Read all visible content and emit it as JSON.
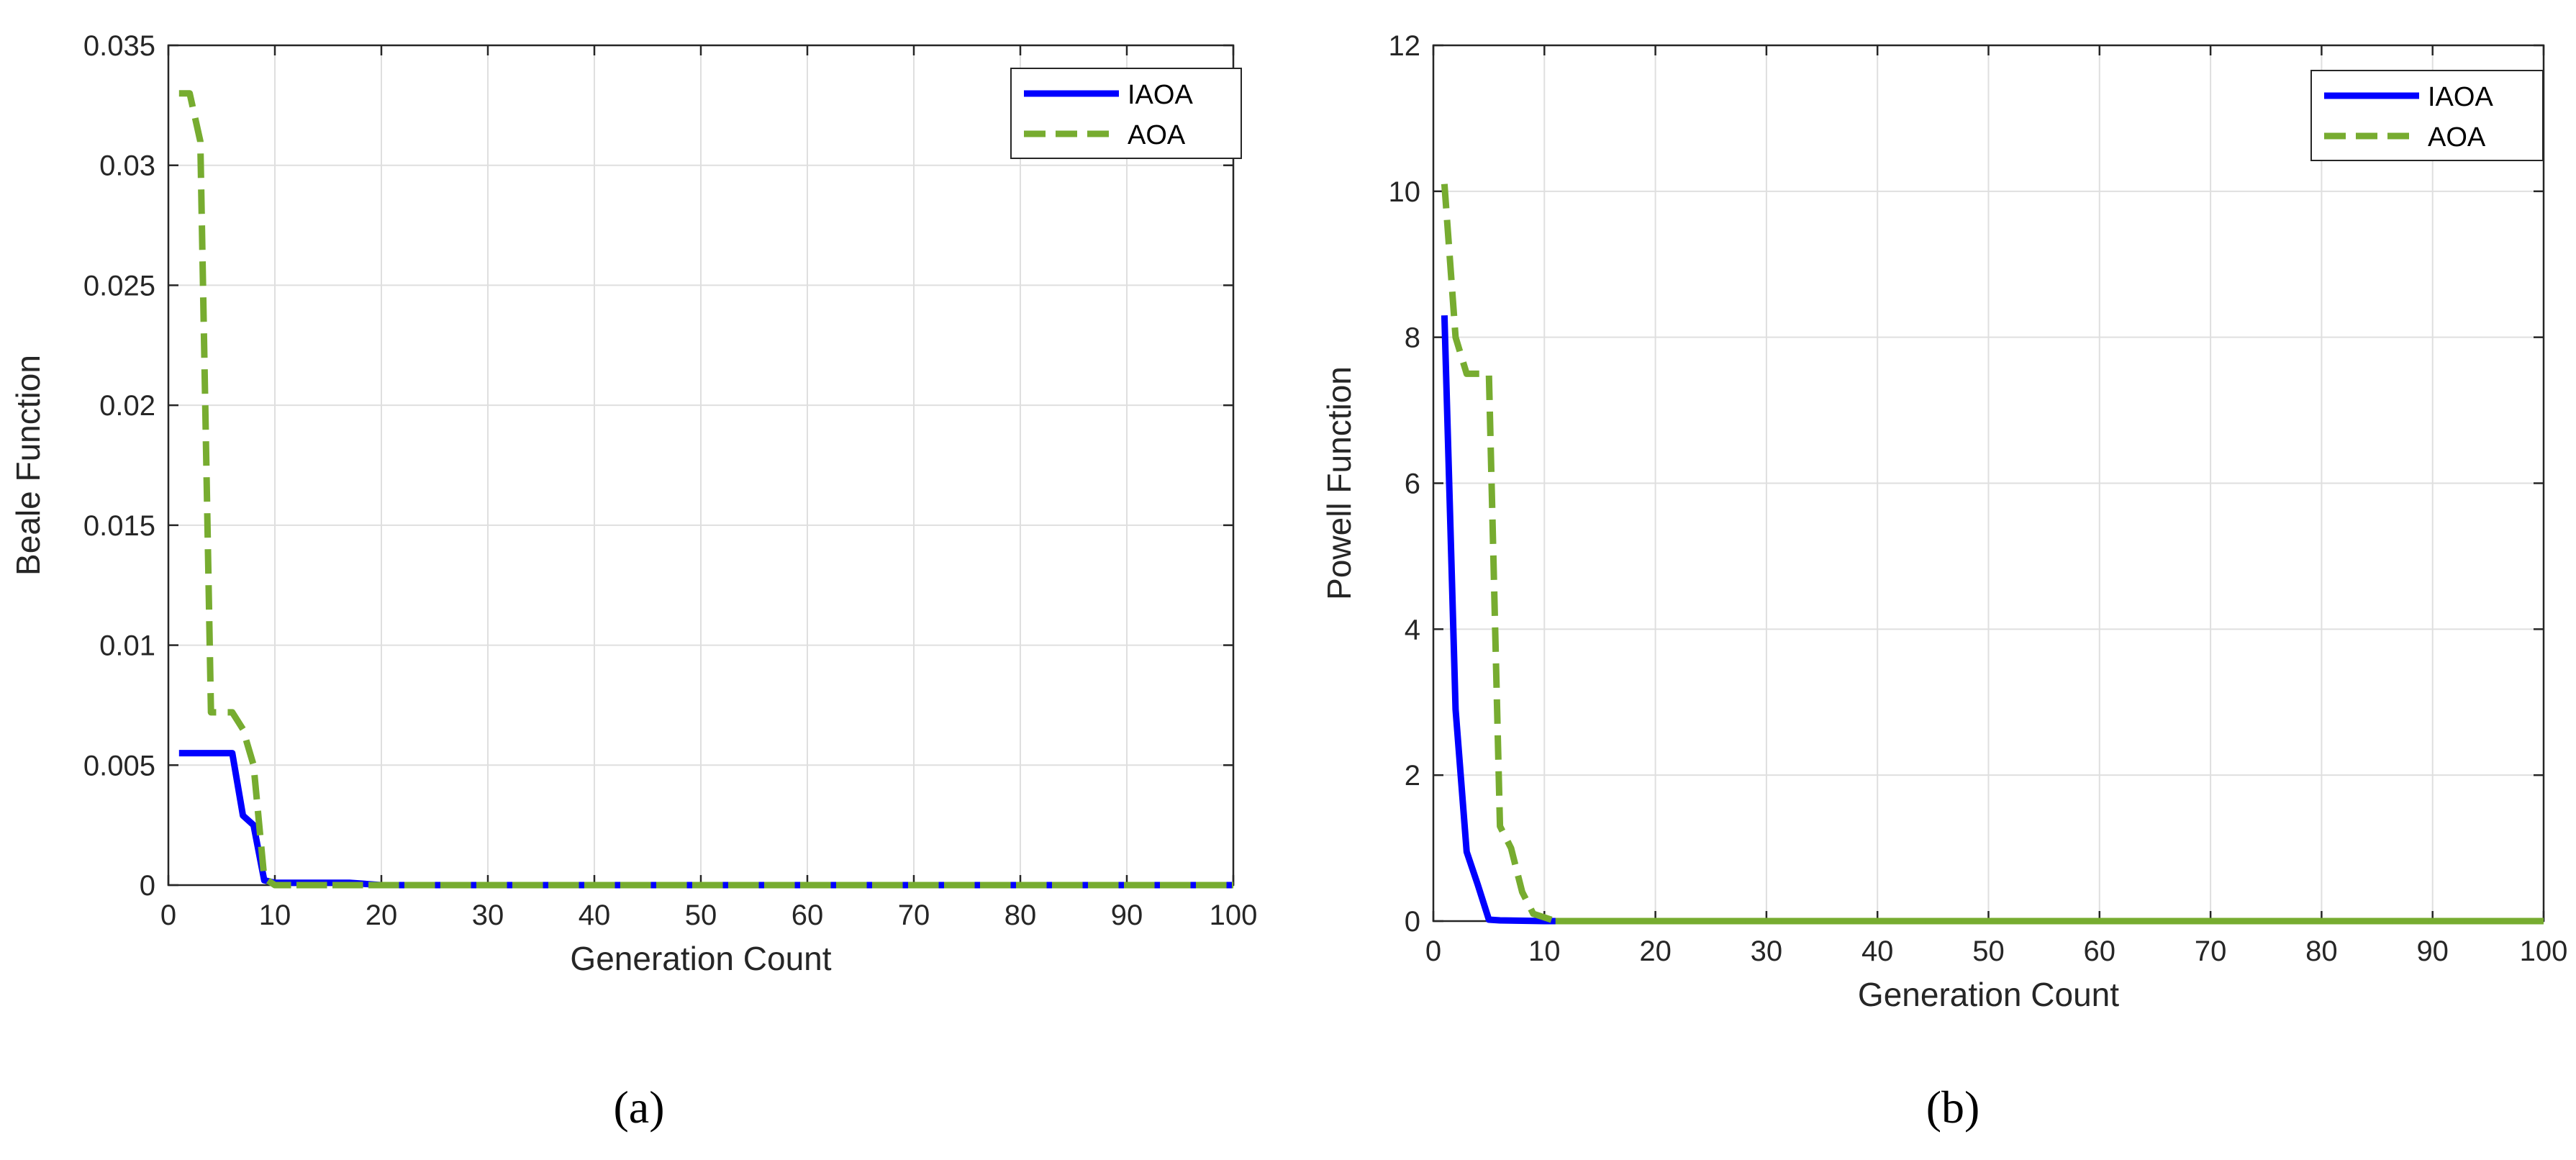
{
  "chart_data": [
    {
      "type": "line",
      "caption": "(a)",
      "xlabel": "Generation Count",
      "ylabel": "Beale Function",
      "xlim": [
        0,
        100
      ],
      "ylim": [
        0,
        0.035
      ],
      "xticks": [
        0,
        10,
        20,
        30,
        40,
        50,
        60,
        70,
        80,
        90,
        100
      ],
      "yticks": [
        0,
        0.005,
        0.01,
        0.015,
        0.02,
        0.025,
        0.03,
        0.035
      ],
      "xtick_labels": [
        "0",
        "10",
        "20",
        "30",
        "40",
        "50",
        "60",
        "70",
        "80",
        "90",
        "100"
      ],
      "ytick_labels": [
        "0",
        "0.005",
        "0.01",
        "0.015",
        "0.02",
        "0.025",
        "0.03",
        "0.035"
      ],
      "grid": true,
      "legend_position": "top-right",
      "series": [
        {
          "name": "IAOA",
          "color": "#0000ff",
          "style": "solid",
          "x": [
            1,
            6,
            7,
            8,
            9,
            10,
            17,
            20,
            100
          ],
          "y": [
            0.0055,
            0.0055,
            0.0029,
            0.0025,
            0.0002,
            0.0001,
            0.0001,
            0.0,
            0.0
          ]
        },
        {
          "name": "AOA",
          "color": "#77ac30",
          "style": "dashed",
          "x": [
            1,
            2,
            3,
            4,
            5,
            6,
            7,
            8,
            9,
            10,
            100
          ],
          "y": [
            0.033,
            0.033,
            0.031,
            0.0072,
            0.0072,
            0.0072,
            0.0065,
            0.005,
            0.0003,
            0.0,
            0.0
          ]
        }
      ]
    },
    {
      "type": "line",
      "caption": "(b)",
      "xlabel": "Generation Count",
      "ylabel": "Powell Function",
      "xlim": [
        0,
        100
      ],
      "ylim": [
        0,
        12
      ],
      "xticks": [
        0,
        10,
        20,
        30,
        40,
        50,
        60,
        70,
        80,
        90,
        100
      ],
      "yticks": [
        0,
        2,
        4,
        6,
        8,
        10,
        12
      ],
      "xtick_labels": [
        "0",
        "10",
        "20",
        "30",
        "40",
        "50",
        "60",
        "70",
        "80",
        "90",
        "100"
      ],
      "ytick_labels": [
        "0",
        "2",
        "4",
        "6",
        "8",
        "10",
        "12"
      ],
      "grid": true,
      "legend_position": "top-right",
      "series": [
        {
          "name": "IAOA",
          "color": "#0000ff",
          "style": "solid",
          "x": [
            1,
            2,
            3,
            4,
            5,
            6,
            10,
            100
          ],
          "y": [
            8.3,
            2.9,
            0.95,
            0.5,
            0.02,
            0.01,
            0.0,
            0.0
          ]
        },
        {
          "name": "AOA",
          "color": "#77ac30",
          "style": "dashed",
          "x": [
            1,
            2,
            3,
            4,
            5,
            6,
            7,
            8,
            9,
            10,
            11,
            100
          ],
          "y": [
            10.1,
            8.0,
            7.5,
            7.5,
            7.5,
            1.3,
            1.0,
            0.4,
            0.1,
            0.05,
            0.0,
            0.0
          ]
        }
      ]
    }
  ]
}
